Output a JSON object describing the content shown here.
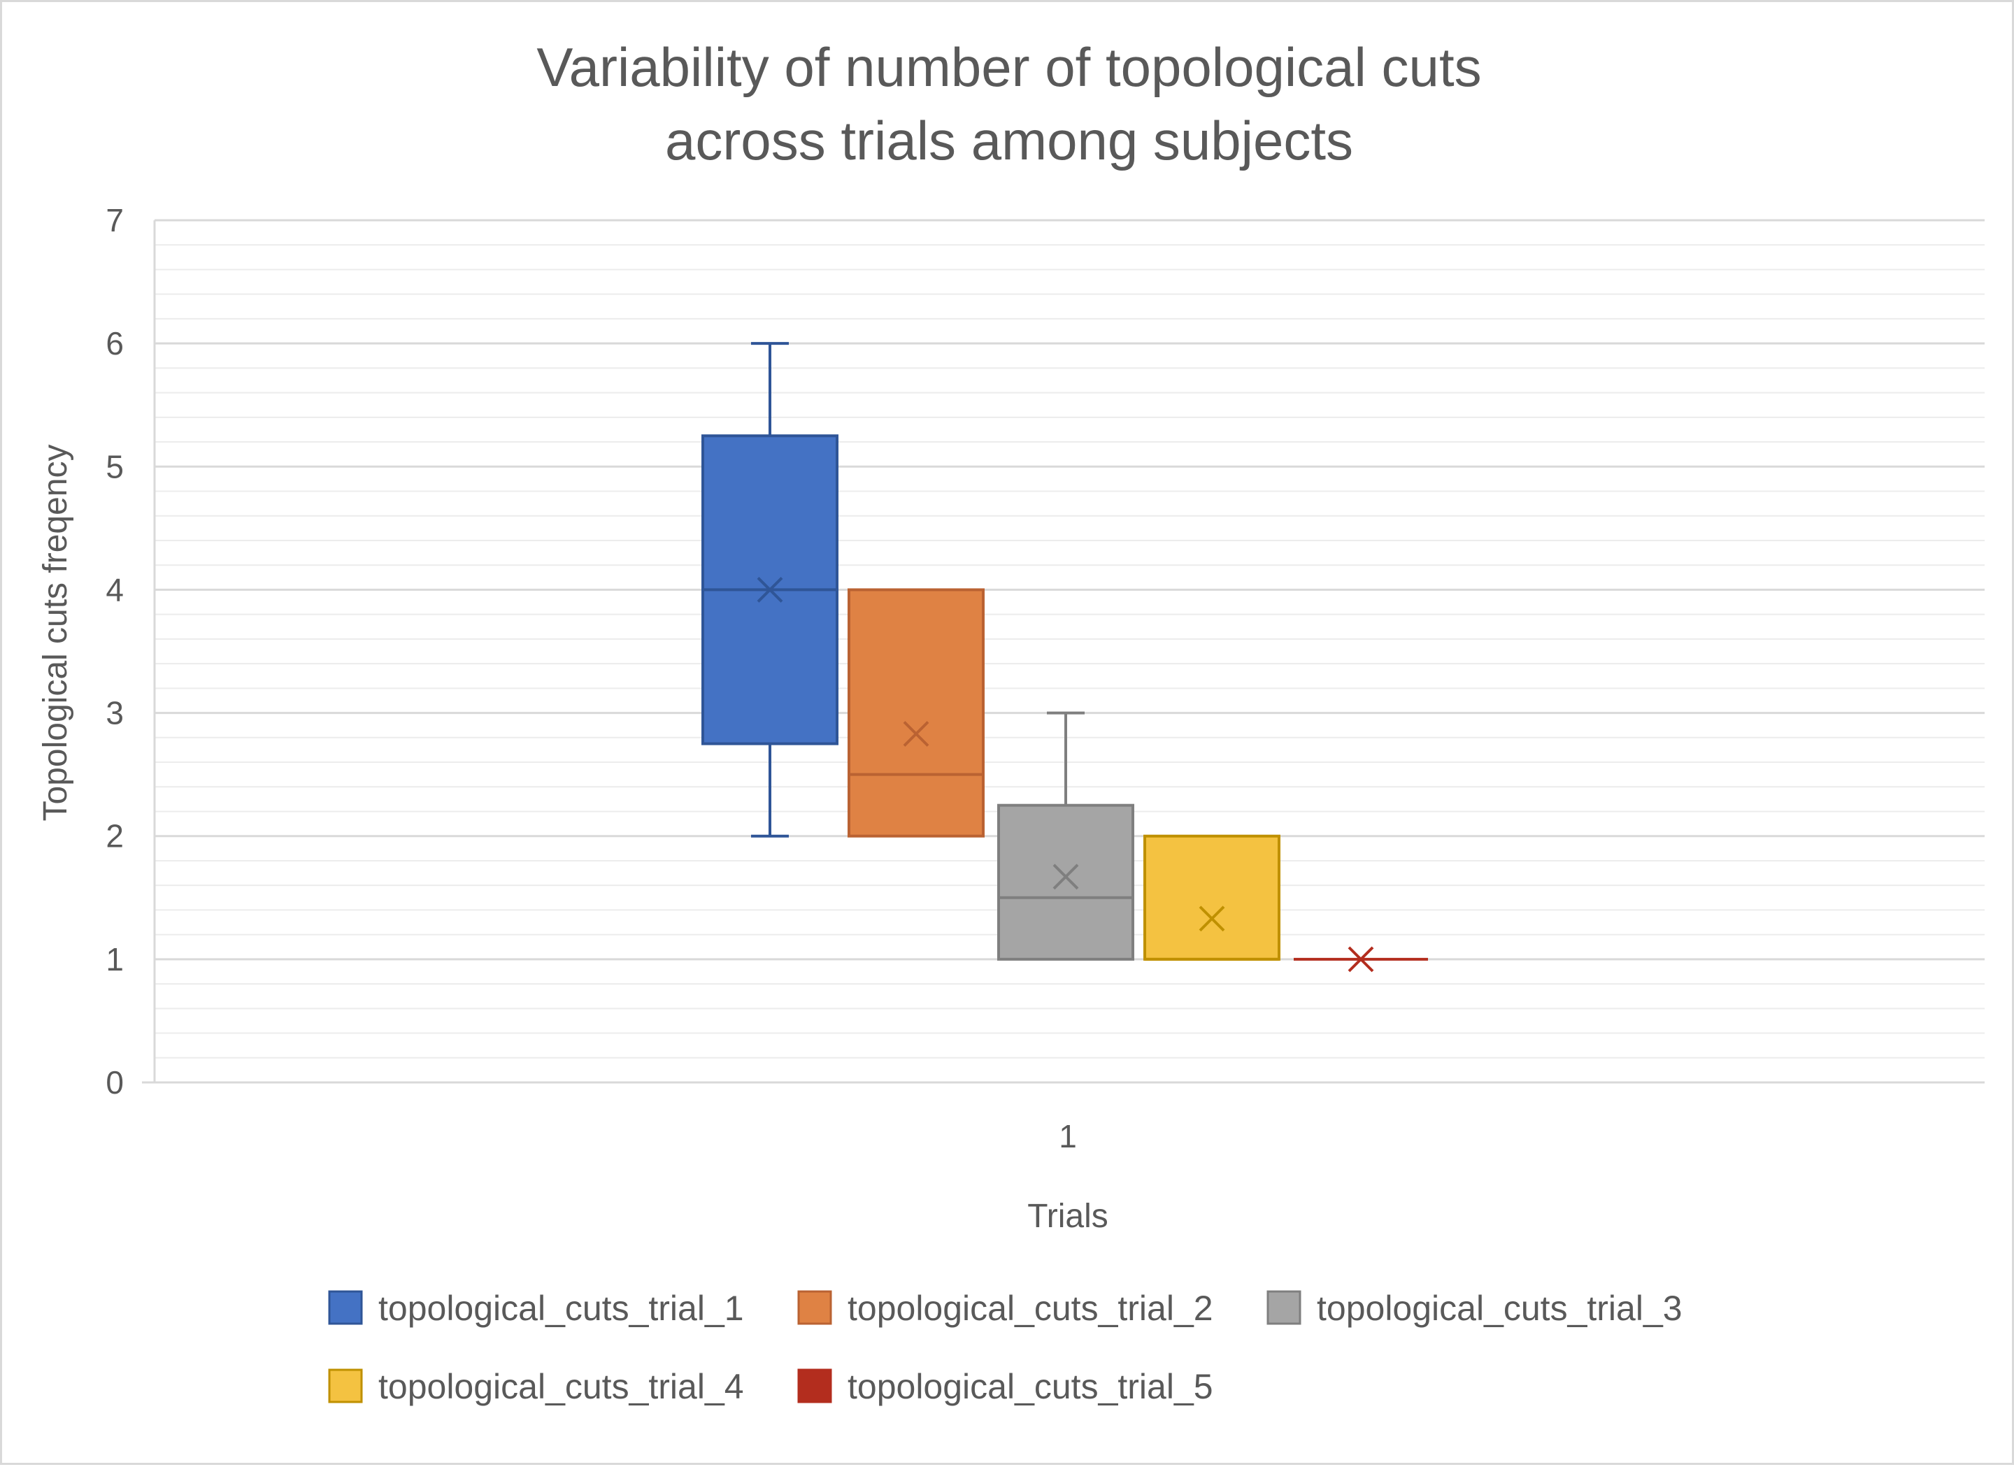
{
  "chart_data": {
    "type": "boxplot",
    "title_lines": [
      "Variability of number of topological cuts",
      "across trials among subjects"
    ],
    "xlabel": "Trials",
    "ylabel": "Topological cuts freqency",
    "categories": [
      "1"
    ],
    "ylim": [
      0,
      7
    ],
    "yticks": [
      0,
      1,
      2,
      3,
      4,
      5,
      6,
      7
    ],
    "ytick_labels": [
      "0",
      "1",
      "2",
      "3",
      "4",
      "5",
      "6",
      "7"
    ],
    "minor_gridlines_per_unit": 5,
    "grid": true,
    "legend_position": "bottom",
    "series": [
      {
        "name": "topological_cuts_trial_1",
        "color": "#4472C4",
        "line_color": "#2F5597",
        "min": 2,
        "q1": 2.75,
        "median": 4,
        "q3": 5.25,
        "max": 6,
        "mean": 4
      },
      {
        "name": "topological_cuts_trial_2",
        "color": "#DF8244",
        "line_color": "#BA6232",
        "min": 2,
        "q1": 2,
        "median": 2.5,
        "q3": 4,
        "max": 4,
        "mean": 2.83
      },
      {
        "name": "topological_cuts_trial_3",
        "color": "#A5A5A5",
        "line_color": "#7F7F7F",
        "min": 1,
        "q1": 1,
        "median": 1.5,
        "q3": 2.25,
        "max": 3,
        "mean": 1.67
      },
      {
        "name": "topological_cuts_trial_4",
        "color": "#F4C241",
        "line_color": "#BF9000",
        "min": 1,
        "q1": 1,
        "median": 1,
        "q3": 2,
        "max": 2,
        "mean": 1.33
      },
      {
        "name": "topological_cuts_trial_5",
        "color": "#B32D1E",
        "line_color": "#B32D1E",
        "min": 1,
        "q1": 1,
        "median": 1,
        "q3": 1,
        "max": 1,
        "mean": 1
      }
    ]
  }
}
